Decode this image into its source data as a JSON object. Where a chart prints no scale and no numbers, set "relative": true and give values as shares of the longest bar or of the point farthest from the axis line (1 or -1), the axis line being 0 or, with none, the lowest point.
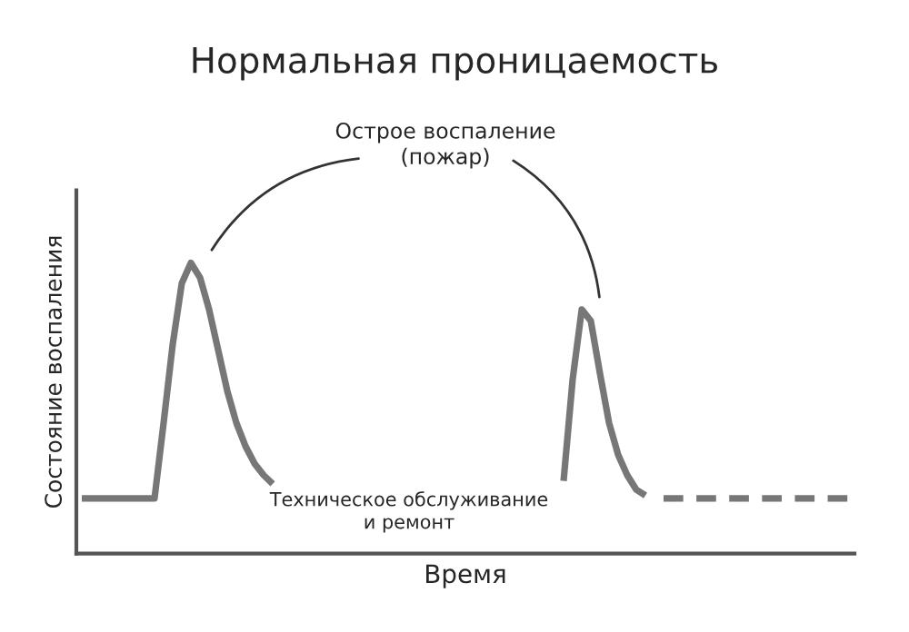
{
  "chart_data": {
    "type": "line",
    "title": "Нормальная проницаемость",
    "xlabel": "Время",
    "ylabel": "Состояние воспаления",
    "relative": true,
    "marker": "none",
    "annotations": [
      "Острое воспаление\n(пожар)",
      "Техническое обслуживание\nи ремонт"
    ],
    "categories": [
      null,
      null,
      null,
      null,
      null,
      null,
      null,
      null,
      null,
      null,
      null,
      null,
      null,
      null,
      null,
      null,
      null,
      null,
      null,
      null,
      null,
      null,
      null,
      null,
      null,
      null,
      null,
      null,
      null,
      null,
      null,
      null,
      null,
      null,
      null,
      null,
      null,
      null,
      null,
      null,
      null,
      null,
      null,
      null,
      null,
      null,
      null,
      null,
      null,
      null,
      null,
      null,
      null,
      null,
      null,
      null,
      null,
      null,
      null,
      null,
      null,
      null,
      null,
      null,
      null,
      null,
      null,
      null,
      null,
      null,
      null,
      null,
      null,
      null,
      null,
      null,
      null,
      null,
      null,
      null,
      null,
      null,
      null,
      null,
      null,
      null
    ],
    "series": [
      {
        "color": "#777777",
        "line_style": "solid",
        "values": [
          0.19,
          0.19,
          0.19,
          0.19,
          0.19,
          0.19,
          0.19,
          0.19,
          0.19,
          0.45,
          0.72,
          0.93,
          1.0,
          0.95,
          0.84,
          0.7,
          0.56,
          0.45,
          0.37,
          0.31,
          0.27,
          0.24,
          null,
          null,
          null,
          null,
          null,
          null,
          null,
          null,
          null,
          null,
          null,
          null,
          null,
          null,
          null,
          null,
          null,
          null,
          null,
          null,
          null,
          null,
          null,
          null,
          null,
          null,
          null,
          null,
          null,
          null,
          null,
          0.25,
          0.6,
          0.84,
          0.8,
          0.62,
          0.45,
          0.34,
          0.27,
          0.22,
          0.2,
          null,
          null,
          null,
          null,
          null,
          null,
          null,
          null,
          null,
          null,
          null,
          null,
          null,
          null,
          null,
          null,
          null,
          null,
          null,
          null,
          null,
          null,
          null
        ]
      },
      {
        "color": "#777777",
        "line_style": "dashed",
        "values": [
          null,
          null,
          null,
          null,
          null,
          null,
          null,
          null,
          null,
          null,
          null,
          null,
          null,
          null,
          null,
          null,
          null,
          null,
          null,
          null,
          null,
          null,
          null,
          null,
          null,
          null,
          null,
          null,
          null,
          null,
          null,
          null,
          null,
          null,
          null,
          null,
          null,
          null,
          null,
          null,
          null,
          null,
          null,
          null,
          null,
          null,
          null,
          null,
          null,
          null,
          null,
          null,
          null,
          null,
          null,
          null,
          null,
          null,
          null,
          null,
          null,
          null,
          null,
          null,
          0.19,
          0.19,
          0.19,
          0.19,
          0.19,
          0.19,
          0.19,
          0.19,
          0.19,
          0.19,
          0.19,
          0.19,
          0.19,
          0.19,
          0.19,
          0.19,
          0.19,
          0.19,
          0.19,
          0.19,
          0.19,
          0.19
        ]
      }
    ]
  }
}
